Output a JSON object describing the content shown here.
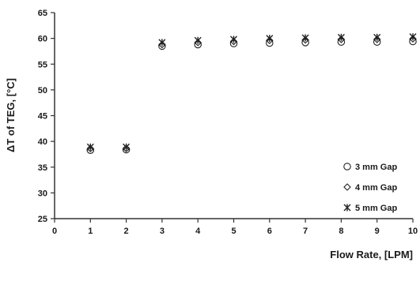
{
  "chart_data": {
    "type": "scatter",
    "title": "",
    "xlabel": "Flow Rate, [LPM]",
    "ylabel": "ΔT of TEG, [°C]",
    "xlim": [
      0,
      10
    ],
    "ylim": [
      25,
      65
    ],
    "xticks": [
      "0",
      "1",
      "2",
      "3",
      "4",
      "5",
      "6",
      "7",
      "8",
      "9",
      "10"
    ],
    "yticks": [
      "25",
      "30",
      "35",
      "40",
      "45",
      "50",
      "55",
      "60",
      "65"
    ],
    "grid": false,
    "legend_position": "right",
    "x": [
      1,
      2,
      3,
      4,
      5,
      6,
      7,
      8,
      9,
      10
    ],
    "series": [
      {
        "name": "3 mm Gap",
        "marker": "circle",
        "values": [
          38.3,
          38.4,
          58.5,
          58.8,
          59.0,
          59.1,
          59.2,
          59.3,
          59.3,
          59.4
        ]
      },
      {
        "name": "4 mm Gap",
        "marker": "diamond",
        "values": [
          38.6,
          38.6,
          58.8,
          59.2,
          59.4,
          59.6,
          59.7,
          59.8,
          59.8,
          59.9
        ]
      },
      {
        "name": "5 mm Gap",
        "marker": "star",
        "values": [
          38.9,
          38.9,
          59.2,
          59.6,
          59.8,
          60.0,
          60.1,
          60.2,
          60.2,
          60.3
        ]
      }
    ]
  }
}
